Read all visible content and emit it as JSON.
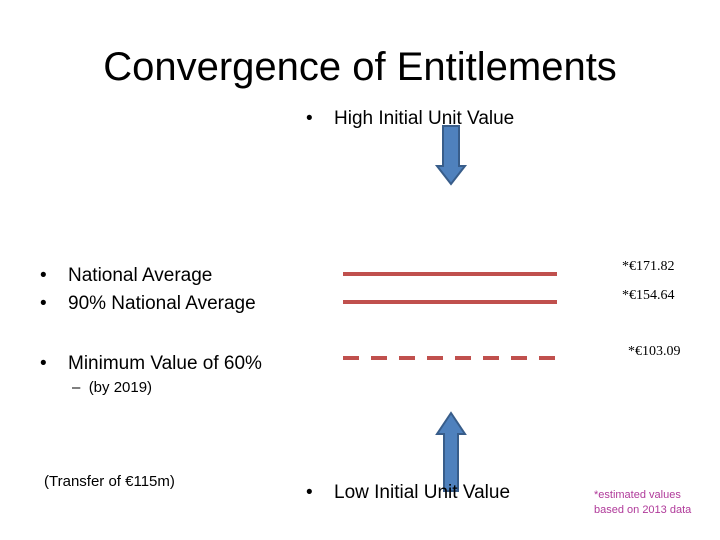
{
  "title": "Convergence of Entitlements",
  "top_bullet": "High Initial Unit Value",
  "bottom_bullet": "Low Initial Unit Value",
  "left_bullets": [
    "National Average",
    "90% National Average",
    "Minimum Value of 60%"
  ],
  "sub_bullet": "(by 2019)",
  "transfer_note": "(Transfer of €115m)",
  "lines": [
    {
      "label": "*€171.82",
      "style": "solid"
    },
    {
      "label": "*€154.64",
      "style": "solid"
    },
    {
      "label": "*€103.09",
      "style": "dashed"
    }
  ],
  "footnote": "*estimated values based on 2013 data",
  "colors": {
    "arrow_fill": "#4f81bd",
    "arrow_stroke": "#385d8a",
    "line": "#c0504d",
    "footnote": "#b03a9a"
  },
  "icons": {
    "down_arrow": "arrow-down",
    "up_arrow": "arrow-up"
  }
}
